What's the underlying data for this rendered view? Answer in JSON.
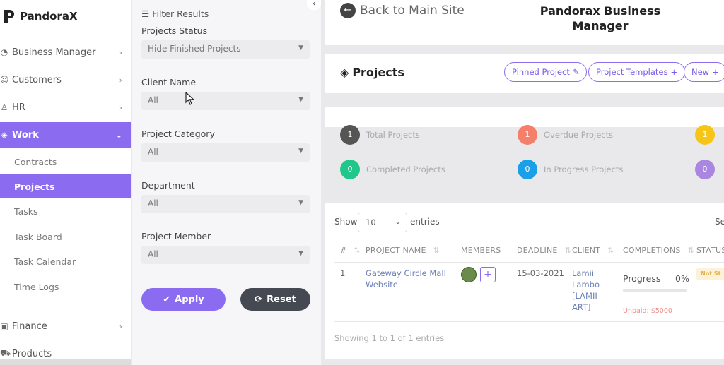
{
  "brand": {
    "name": "PandoraX"
  },
  "sidebar": {
    "items": [
      {
        "label": "Business Manager",
        "icon": "gauge-icon"
      },
      {
        "label": "Customers",
        "icon": "users-icon"
      },
      {
        "label": "HR",
        "icon": "user-icon"
      },
      {
        "label": "Work",
        "icon": "layers-icon"
      },
      {
        "label": "Finance",
        "icon": "money-icon"
      },
      {
        "label": "Products",
        "icon": "cart-icon"
      }
    ],
    "work_sub": [
      "Contracts",
      "Projects",
      "Tasks",
      "Task Board",
      "Task Calendar",
      "Time Logs"
    ]
  },
  "filter": {
    "title": "Filter Results",
    "fields": [
      {
        "label": "Projects Status",
        "value": "Hide Finished Projects"
      },
      {
        "label": "Client Name",
        "value": "All"
      },
      {
        "label": "Project Category",
        "value": "All"
      },
      {
        "label": "Department",
        "value": "All"
      },
      {
        "label": "Project Member",
        "value": "All"
      }
    ],
    "apply_label": "Apply",
    "reset_label": "Reset"
  },
  "header": {
    "back_label": "Back to Main Site",
    "app_title": "Pandorax Business Manager"
  },
  "projects_card": {
    "title": "Projects",
    "buttons": [
      "Pinned Project",
      "Project Templates",
      "New"
    ]
  },
  "stats": [
    {
      "count": "1",
      "label": "Total Projects",
      "color": "#555555"
    },
    {
      "count": "1",
      "label": "Overdue Projects",
      "color": "#f47f6b"
    },
    {
      "count": "1",
      "label": "",
      "color": "#f5c518"
    },
    {
      "count": "0",
      "label": "Completed Projects",
      "color": "#1fc88a"
    },
    {
      "count": "0",
      "label": "In Progress Projects",
      "color": "#1aa0e8"
    },
    {
      "count": "0",
      "label": "",
      "color": "#a987e0"
    }
  ],
  "table": {
    "show_label": "Show",
    "page_size": "10",
    "entries_label": "entries",
    "search_label_cut": "Se",
    "columns": [
      "#",
      "PROJECT NAME",
      "MEMBERS",
      "DEADLINE",
      "CLIENT",
      "COMPLETIONS",
      "STATUS"
    ],
    "rows": [
      {
        "num": "1",
        "name_line1": "Gateway Circle Mall",
        "name_line2": "Website",
        "deadline": "15-03-2021",
        "client_line1": "Lamii",
        "client_line2": "Lambo",
        "client_line3": "[LAMII",
        "client_line4": "ART]",
        "progress_label": "Progress",
        "progress_pct": "0%",
        "progress_value": 0,
        "unpaid": "Unpaid: $5000",
        "status": "Not St"
      }
    ],
    "footer_info": "Showing 1 to 1 of 1 entries"
  },
  "colors": {
    "accent": "#8b6cf0",
    "dark_button": "#454a52"
  }
}
